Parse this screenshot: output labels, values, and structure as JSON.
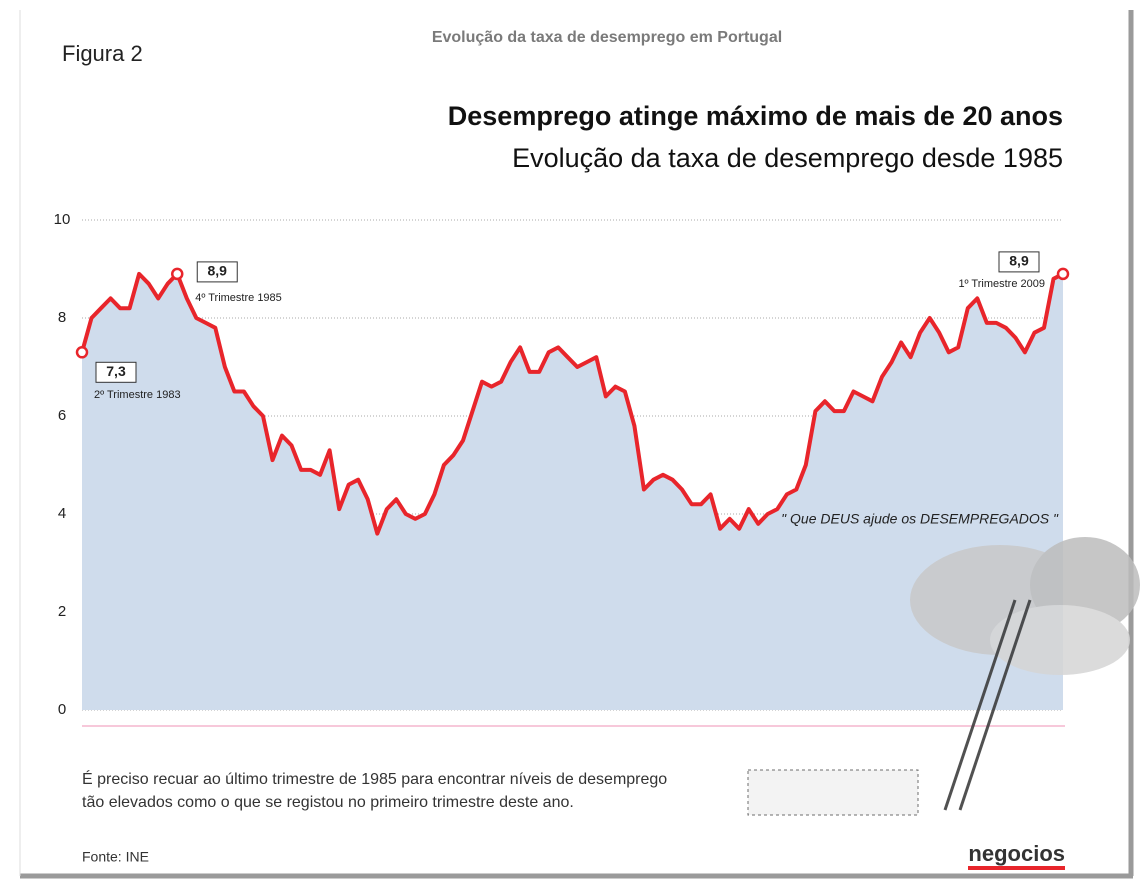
{
  "figure_label": "Figura 2",
  "header": "Evolução da taxa de desemprego em Portugal",
  "chart_data": {
    "type": "area",
    "title": "Desemprego atinge máximo de mais de 20 anos",
    "subtitle": "Evolução da taxa de desemprego desde 1985",
    "values": [
      7.3,
      8.0,
      8.2,
      8.4,
      8.2,
      8.2,
      8.9,
      8.7,
      8.4,
      8.7,
      8.9,
      8.4,
      8.0,
      7.9,
      7.8,
      7.0,
      6.5,
      6.5,
      6.2,
      6.0,
      5.1,
      5.6,
      5.4,
      4.9,
      4.9,
      4.8,
      5.3,
      4.1,
      4.6,
      4.7,
      4.3,
      3.6,
      4.1,
      4.3,
      4.0,
      3.9,
      4.0,
      4.4,
      5.0,
      5.2,
      5.5,
      6.1,
      6.7,
      6.6,
      6.7,
      7.1,
      7.4,
      6.9,
      6.9,
      7.3,
      7.4,
      7.2,
      7.0,
      7.1,
      7.2,
      6.4,
      6.6,
      6.5,
      5.8,
      4.5,
      4.7,
      4.8,
      4.7,
      4.5,
      4.2,
      4.2,
      4.4,
      3.7,
      3.9,
      3.7,
      4.1,
      3.8,
      4.0,
      4.1,
      4.4,
      4.5,
      5.0,
      6.1,
      6.3,
      6.1,
      6.1,
      6.5,
      6.4,
      6.3,
      6.8,
      7.1,
      7.5,
      7.2,
      7.7,
      8.0,
      7.7,
      7.3,
      7.4,
      8.2,
      8.4,
      7.9,
      7.9,
      7.8,
      7.6,
      7.3,
      7.7,
      7.8,
      8.8,
      8.9
    ],
    "value_labels": [
      "7,3",
      null,
      null,
      null,
      null,
      null,
      null,
      null,
      null,
      null,
      "8,9",
      null,
      null,
      null,
      null,
      null,
      null,
      null,
      null,
      null,
      null,
      null,
      null,
      null,
      null,
      null,
      null,
      null,
      null,
      null,
      null,
      null,
      null,
      null,
      null,
      null,
      null,
      null,
      null,
      null,
      null,
      null,
      null,
      null,
      null,
      null,
      null,
      null,
      null,
      null,
      null,
      null,
      null,
      null,
      null,
      null,
      null,
      null,
      null,
      null,
      null,
      null,
      null,
      null,
      null,
      null,
      null,
      null,
      null,
      null,
      null,
      null,
      null,
      null,
      null,
      null,
      null,
      null,
      null,
      null,
      null,
      null,
      null,
      null,
      null,
      null,
      null,
      null,
      null,
      null,
      null,
      null,
      null,
      null,
      null,
      null,
      null,
      null,
      null,
      null,
      null,
      null,
      null,
      "8,9"
    ],
    "annotations": [
      "2º Trimestre 1983",
      "4º Trimestre 1985",
      "1º Trimestre 2009"
    ],
    "color": "#e8252b",
    "fill": "#cfdcec",
    "ylim": [
      0,
      10
    ],
    "yticks": [
      0,
      2,
      4,
      6,
      8,
      10
    ],
    "grid": true
  },
  "cartoon_caption": "\" Que DEUS ajude os DESEMPREGADOS \"",
  "note": [
    "É preciso recuar ao último trimestre de 1985 para encontrar níveis de desemprego",
    "tão elevados como o que se registou no primeiro trimestre deste ano."
  ],
  "source": "Fonte: INE",
  "brand": "negocios"
}
